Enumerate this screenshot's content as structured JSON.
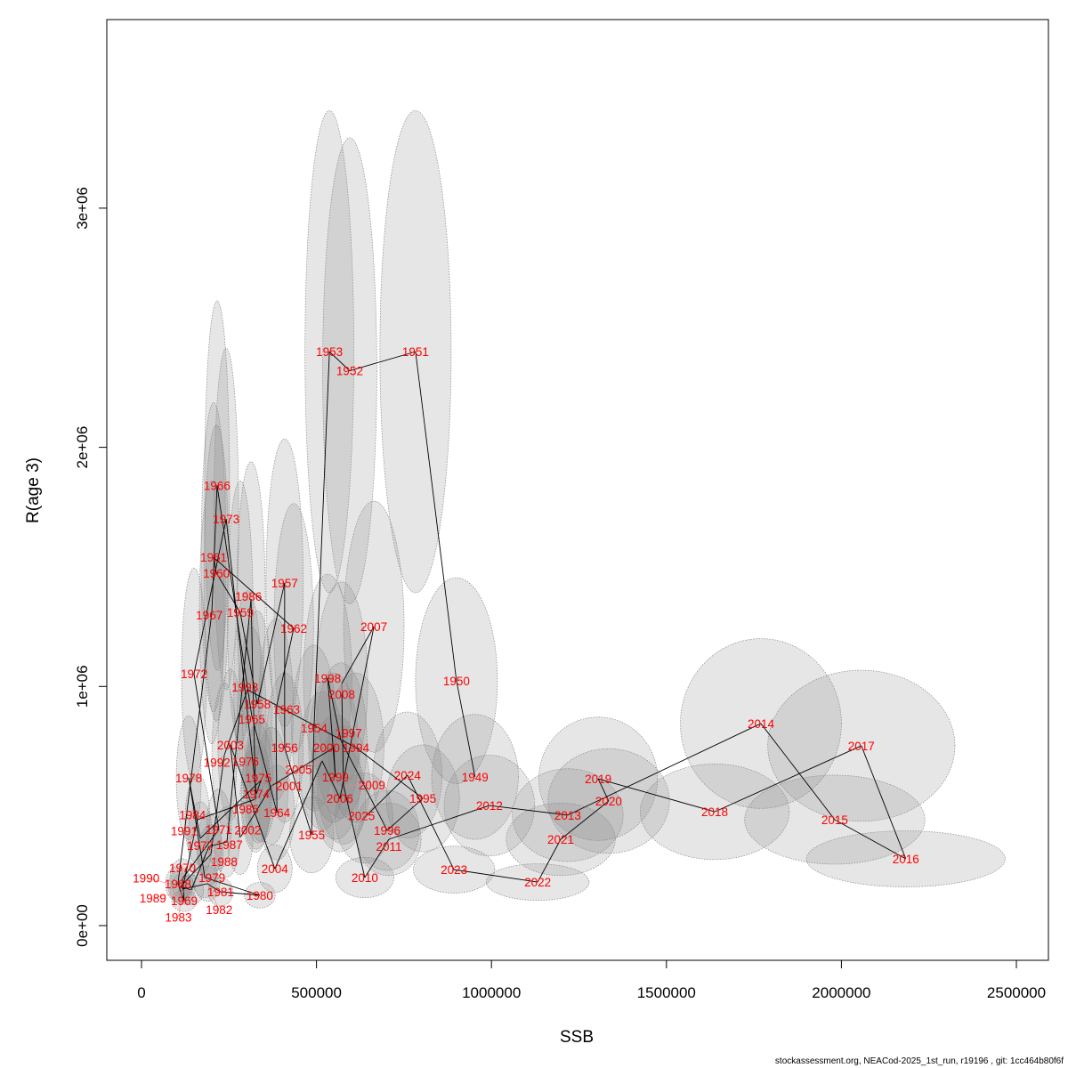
{
  "chart_data": {
    "type": "scatter",
    "xlabel": "SSB",
    "ylabel": "R(age 3)",
    "xlim": [
      -100000,
      2600000
    ],
    "ylim": [
      -150000,
      3780000
    ],
    "x_ticks": [
      0,
      500000,
      1000000,
      1500000,
      2000000,
      2500000
    ],
    "x_tick_labels": [
      "0",
      "500000",
      "1000000",
      "1500000",
      "2000000",
      "2500000"
    ],
    "y_ticks": [
      0,
      1000000,
      2000000,
      3000000
    ],
    "y_tick_labels": [
      "0e+00",
      "1e+06",
      "2e+06",
      "3e+06"
    ],
    "grid": false,
    "connected_in_year_order": true,
    "label_color": "#ff0000",
    "ellipse_color": "#808080",
    "points": [
      {
        "year": "1949",
        "ssb": 953000,
        "r": 622000
      },
      {
        "year": "1950",
        "ssb": 900000,
        "r": 1024000
      },
      {
        "year": "1951",
        "ssb": 783000,
        "r": 2400000
      },
      {
        "year": "1952",
        "ssb": 595000,
        "r": 2320000
      },
      {
        "year": "1953",
        "ssb": 537000,
        "r": 2400000
      },
      {
        "year": "1954",
        "ssb": 493000,
        "r": 826000
      },
      {
        "year": "1955",
        "ssb": 486000,
        "r": 380000
      },
      {
        "year": "1956",
        "ssb": 409000,
        "r": 744000
      },
      {
        "year": "1957",
        "ssb": 409000,
        "r": 1433000
      },
      {
        "year": "1958",
        "ssb": 331000,
        "r": 927000
      },
      {
        "year": "1959",
        "ssb": 282000,
        "r": 1310000
      },
      {
        "year": "1960",
        "ssb": 214000,
        "r": 1474000
      },
      {
        "year": "1961",
        "ssb": 206000,
        "r": 1540000
      },
      {
        "year": "1962",
        "ssb": 435000,
        "r": 1243000
      },
      {
        "year": "1963",
        "ssb": 384000,
        "r": 904000
      },
      {
        "year": "1964",
        "ssb": 387000,
        "r": 473000
      },
      {
        "year": "1965",
        "ssb": 315000,
        "r": 878000
      },
      {
        "year": "1966",
        "ssb": 216000,
        "r": 1840000
      },
      {
        "year": "1967",
        "ssb": 201000,
        "r": 1310000
      },
      {
        "year": "1968",
        "ssb": 104000,
        "r": 175000
      },
      {
        "year": "1969",
        "ssb": 122000,
        "r": 104000
      },
      {
        "year": "1970",
        "ssb": 117000,
        "r": 197000
      },
      {
        "year": "1971",
        "ssb": 221000,
        "r": 402000
      },
      {
        "year": "1972",
        "ssb": 150000,
        "r": 1053000
      },
      {
        "year": "1973",
        "ssb": 242000,
        "r": 1700000
      },
      {
        "year": "1974",
        "ssb": 328000,
        "r": 551000
      },
      {
        "year": "1975",
        "ssb": 341000,
        "r": 607000
      },
      {
        "year": "1976",
        "ssb": 333000,
        "r": 596000
      },
      {
        "year": "1977",
        "ssb": 168000,
        "r": 365000
      },
      {
        "year": "1978",
        "ssb": 135000,
        "r": 618000
      },
      {
        "year": "1979",
        "ssb": 181000,
        "r": 201000
      },
      {
        "year": "1980",
        "ssb": 338000,
        "r": 127000
      },
      {
        "year": "1981",
        "ssb": 226000,
        "r": 141000
      },
      {
        "year": "1982",
        "ssb": 188000,
        "r": 175000
      },
      {
        "year": "1983",
        "ssb": 117000,
        "r": 153000
      },
      {
        "year": "1984",
        "ssb": 160000,
        "r": 443000
      },
      {
        "year": "1985",
        "ssb": 326000,
        "r": 529000
      },
      {
        "year": "1986",
        "ssb": 313000,
        "r": 1366000
      },
      {
        "year": "1987",
        "ssb": 244000,
        "r": 350000
      },
      {
        "year": "1988",
        "ssb": 193000,
        "r": 331000
      },
      {
        "year": "1989",
        "ssb": 142000,
        "r": 149000
      },
      {
        "year": "1990",
        "ssb": 112000,
        "r": 164000
      },
      {
        "year": "1991",
        "ssb": 198000,
        "r": 298000
      },
      {
        "year": "1992",
        "ssb": 237000,
        "r": 715000
      },
      {
        "year": "1993",
        "ssb": 303000,
        "r": 986000
      },
      {
        "year": "1994",
        "ssb": 613000,
        "r": 744000
      },
      {
        "year": "1995",
        "ssb": 804000,
        "r": 532000
      },
      {
        "year": "1996",
        "ssb": 702000,
        "r": 398000
      },
      {
        "year": "1997",
        "ssb": 570000,
        "r": 774000
      },
      {
        "year": "1998",
        "ssb": 532000,
        "r": 1035000
      },
      {
        "year": "1999",
        "ssb": 554000,
        "r": 622000
      },
      {
        "year": "2000",
        "ssb": 549000,
        "r": 744000
      },
      {
        "year": "2001",
        "ssb": 371000,
        "r": 584000
      },
      {
        "year": "2002",
        "ssb": 282000,
        "r": 368000
      },
      {
        "year": "2003",
        "ssb": 254000,
        "r": 756000
      },
      {
        "year": "2004",
        "ssb": 381000,
        "r": 238000
      },
      {
        "year": "2005",
        "ssb": 516000,
        "r": 689000
      },
      {
        "year": "2006",
        "ssb": 567000,
        "r": 532000
      },
      {
        "year": "2007",
        "ssb": 664000,
        "r": 1250000
      },
      {
        "year": "2008",
        "ssb": 572000,
        "r": 1012000
      },
      {
        "year": "2009",
        "ssb": 577000,
        "r": 588000
      },
      {
        "year": "2010",
        "ssb": 638000,
        "r": 201000
      },
      {
        "year": "2011",
        "ssb": 707000,
        "r": 361000
      },
      {
        "year": "2012",
        "ssb": 994000,
        "r": 502000
      },
      {
        "year": "2013",
        "ssb": 1218000,
        "r": 462000
      },
      {
        "year": "2014",
        "ssb": 1770000,
        "r": 845000
      },
      {
        "year": "2015",
        "ssb": 1981000,
        "r": 443000
      },
      {
        "year": "2016",
        "ssb": 2184000,
        "r": 279000
      },
      {
        "year": "2017",
        "ssb": 2057000,
        "r": 752000
      },
      {
        "year": "2018",
        "ssb": 1638000,
        "r": 476000
      },
      {
        "year": "2019",
        "ssb": 1305000,
        "r": 614000
      },
      {
        "year": "2020",
        "ssb": 1335000,
        "r": 521000
      },
      {
        "year": "2021",
        "ssb": 1198000,
        "r": 361000
      },
      {
        "year": "2022",
        "ssb": 1132000,
        "r": 182000
      },
      {
        "year": "2023",
        "ssb": 893000,
        "r": 234000
      },
      {
        "year": "2024",
        "ssb": 760000,
        "r": 629000
      },
      {
        "year": "2025",
        "ssb": 636000,
        "r": 450000
      }
    ]
  },
  "footnote": "stockassessment.org, NEACod-2025_1st_run, r19196 , git: 1cc464b80f6f"
}
